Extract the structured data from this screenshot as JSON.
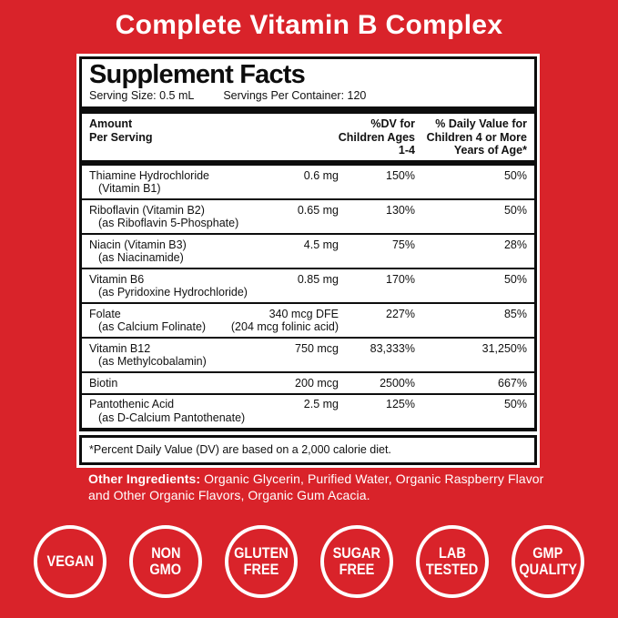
{
  "title": "Complete Vitamin B Complex",
  "colors": {
    "background": "#D9232A",
    "panel": "#FFFFFF",
    "rule": "#0D0D0D",
    "title_text": "#FFFFFF",
    "badge_ring": "#FFFFFF"
  },
  "panel": {
    "title": "Supplement Facts",
    "serving_size": "Serving Size: 0.5 mL",
    "servings_per_container": "Servings Per Container: 120",
    "columns": {
      "amount_per_serving": [
        "Amount",
        "Per Serving"
      ],
      "dv_children_1_4": [
        "%DV for",
        "Children Ages",
        "1-4"
      ],
      "dv_children_4_plus": [
        "% Daily Value for",
        "Children 4 or More",
        "Years of Age*"
      ]
    },
    "rows": [
      {
        "name": "Thiamine Hydrochloride",
        "sub": "(Vitamin B1)",
        "amount": "0.6 mg",
        "dv_children": "150%",
        "dv_adult": "50%"
      },
      {
        "name": "Riboflavin (Vitamin B2)",
        "sub": "(as Riboflavin 5-Phosphate)",
        "amount": "0.65 mg",
        "dv_children": "130%",
        "dv_adult": "50%"
      },
      {
        "name": "Niacin (Vitamin B3)",
        "sub": "(as Niacinamide)",
        "amount": "4.5 mg",
        "dv_children": "75%",
        "dv_adult": "28%"
      },
      {
        "name": "Vitamin B6",
        "sub": "(as Pyridoxine Hydrochloride)",
        "amount": "0.85 mg",
        "dv_children": "170%",
        "dv_adult": "50%"
      },
      {
        "name": "Folate",
        "sub": "(as Calcium Folinate)",
        "amount": "340 mcg DFE",
        "amount_sub": "(204 mcg folinic acid)",
        "dv_children": "227%",
        "dv_adult": "85%"
      },
      {
        "name": "Vitamin B12",
        "sub": "(as Methylcobalamin)",
        "amount": "750 mcg",
        "dv_children": "83,333%",
        "dv_adult": "31,250%"
      },
      {
        "name": "Biotin",
        "sub": "",
        "amount": "200 mcg",
        "dv_children": "2500%",
        "dv_adult": "667%"
      },
      {
        "name": "Pantothenic Acid",
        "sub": "(as D-Calcium Pantothenate)",
        "amount": "2.5 mg",
        "dv_children": "125%",
        "dv_adult": "50%"
      }
    ],
    "footnote": "*Percent Daily Value (DV) are based on a 2,000 calorie diet."
  },
  "other_ingredients": {
    "label": "Other Ingredients:",
    "lines": [
      "Organic Glycerin, Purified Water, Organic Raspberry Flavor",
      "and Other Organic Flavors, Organic Gum Acacia."
    ]
  },
  "badges": [
    {
      "lines": [
        "VEGAN"
      ]
    },
    {
      "lines": [
        "NON",
        "GMO"
      ]
    },
    {
      "lines": [
        "GLUTEN",
        "FREE"
      ]
    },
    {
      "lines": [
        "SUGAR",
        "FREE"
      ]
    },
    {
      "lines": [
        "LAB",
        "TESTED"
      ]
    },
    {
      "lines": [
        "GMP",
        "QUALITY"
      ]
    }
  ]
}
